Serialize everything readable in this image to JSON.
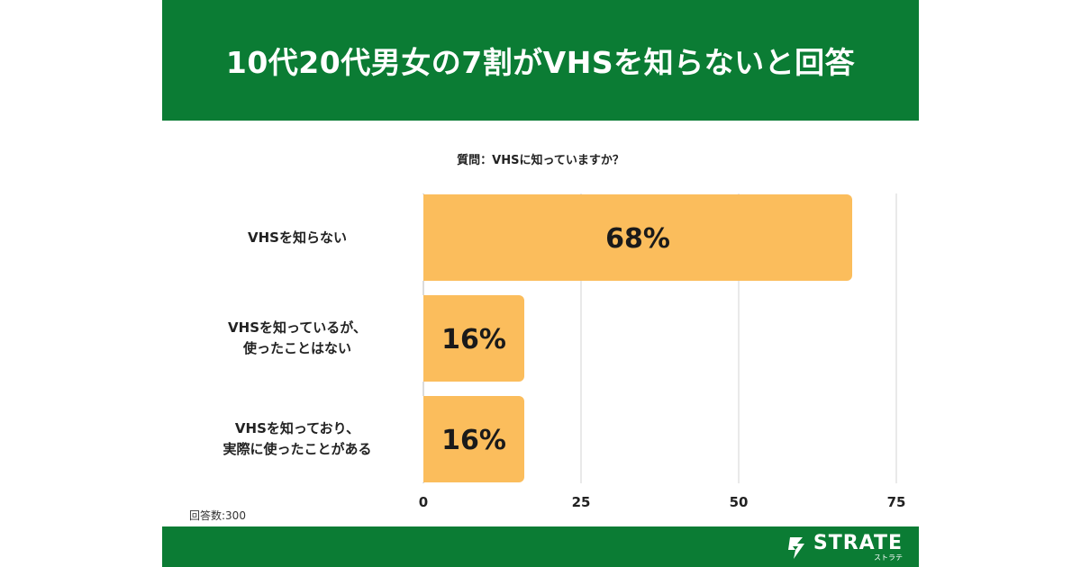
{
  "header": {
    "title": "10代20代男女の7割がVHSを知らないと回答"
  },
  "question": "質問：VHSに知っていますか？",
  "respondents": "回答数:300",
  "brand": {
    "name": "STRATE",
    "kana": "ストラテ"
  },
  "colors": {
    "header_bg": "#0b7c34",
    "bar_fill": "#fbbd5c",
    "grid": "#e2e2e2"
  },
  "chart_data": {
    "type": "bar",
    "orientation": "horizontal",
    "title": "",
    "xlabel": "",
    "ylabel": "",
    "categories": [
      [
        "VHSを知らない"
      ],
      [
        "VHSを知っているが、",
        "使ったことはない"
      ],
      [
        "VHSを知っており、",
        "実際に使ったことがある"
      ]
    ],
    "values": [
      68,
      16,
      16
    ],
    "data_labels": [
      "68%",
      "16%",
      "16%"
    ],
    "xlim": [
      0,
      75
    ],
    "ticks": [
      0,
      25,
      50,
      75
    ],
    "tick_labels": [
      "0",
      "25",
      "50",
      "75"
    ],
    "grid": true
  }
}
